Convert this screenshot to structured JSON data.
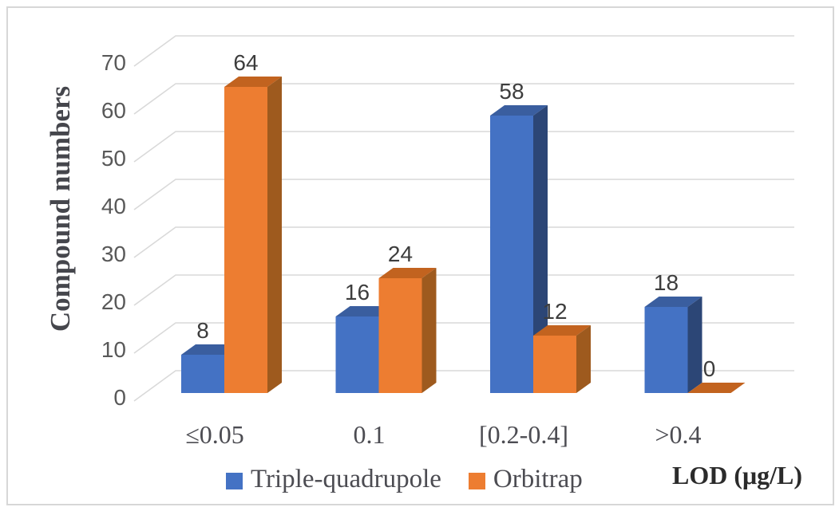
{
  "chart_data": {
    "type": "bar",
    "style": "3d-clustered-column",
    "categories": [
      "≤0.05",
      "0.1",
      "[0.2-0.4]",
      ">0.4"
    ],
    "series": [
      {
        "name": "Triple-quadrupole",
        "color": "#4472C4",
        "color_top": "#3A5E9F",
        "color_side": "#2C4676",
        "values": [
          8,
          16,
          58,
          18
        ]
      },
      {
        "name": "Orbitrap",
        "color": "#ED7D31",
        "color_top": "#C2631F",
        "color_side": "#9E5A1E",
        "values": [
          64,
          24,
          12,
          0
        ]
      }
    ],
    "title": "",
    "xlabel": "LOD (μg/L)",
    "ylabel": "Compound numbers",
    "ylim": [
      0,
      70
    ],
    "ytick_step": 10,
    "yticks": [
      0,
      10,
      20,
      30,
      40,
      50,
      60,
      70
    ],
    "grid": true,
    "legend_position": "bottom",
    "data_labels": true,
    "colors": {
      "gridline": "#d9d9d9",
      "tick_label": "#595959",
      "data_label": "#3d3d3d",
      "category_label": "#4c4c52",
      "axis_title": "#45464c",
      "frame_border": "#d7d7d7"
    }
  }
}
